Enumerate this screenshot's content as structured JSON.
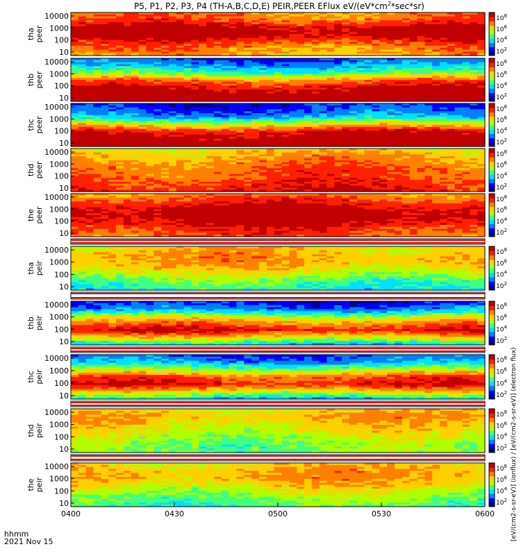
{
  "title_main": "P5, P1, P2, P3, P4 (TH-A,B,C,D,E) PEIR,PEER EFlux eV/(eV*cm",
  "title_sup": "2",
  "title_tail": "*sec*sr)",
  "colors": {
    "scale": [
      "#000088",
      "#0000ff",
      "#0080ff",
      "#00e0ff",
      "#40ff80",
      "#b0ff00",
      "#ffd000",
      "#ff8000",
      "#ff2000",
      "#c00000"
    ]
  },
  "bottom": {
    "hhmm_label": "hhmm",
    "date_label": "2021 Nov 15"
  },
  "colorbar_label": "[eV/(cm2-s-sr-eV)] (ionflux) / [eV/(cm2-s-sr-eV)] (electron flux)",
  "chart_data": [
    {
      "type": "heatmap",
      "ylabel": [
        "tha",
        "peer"
      ],
      "yticks": [
        "10000",
        "1000",
        "100",
        "10"
      ],
      "cbar_exps": [
        "8",
        "6",
        "4",
        "2"
      ],
      "profile": [
        7,
        7.5,
        9,
        9.5,
        8,
        7,
        6.5
      ]
    },
    {
      "type": "heatmap",
      "ylabel": [
        "thb",
        "peer"
      ],
      "yticks": [
        "10000",
        "1000",
        "100",
        "10"
      ],
      "cbar_exps": [
        "8",
        "6",
        "4",
        "2"
      ],
      "profile": [
        1.5,
        2.5,
        4,
        7,
        8.5,
        9.5,
        10
      ]
    },
    {
      "type": "heatmap",
      "ylabel": [
        "thc",
        "peer"
      ],
      "yticks": [
        "10000",
        "1000",
        "100",
        "10"
      ],
      "cbar_exps": [
        "8",
        "6",
        "4",
        "2"
      ],
      "profile": [
        1,
        1.5,
        3,
        6,
        8.5,
        9.5,
        10
      ]
    },
    {
      "type": "heatmap",
      "ylabel": [
        "thd",
        "peer"
      ],
      "yticks": [
        "10000",
        "1000",
        "100",
        "10"
      ],
      "cbar_exps": [
        "8",
        "6",
        "4",
        "2"
      ],
      "profile": [
        6,
        6.5,
        7,
        7.5,
        7.5,
        8,
        8.5
      ]
    },
    {
      "type": "heatmap",
      "ylabel": [
        "the",
        "peer"
      ],
      "yticks": [
        "10000",
        "1000",
        "100",
        "10"
      ],
      "cbar_exps": [
        "8",
        "6",
        "4",
        "2"
      ],
      "profile": [
        7,
        8,
        9,
        9.5,
        9,
        8,
        7.5
      ]
    },
    {
      "type": "heatmap",
      "ylabel": [
        "tha",
        "peir"
      ],
      "yticks": [
        "10000",
        "1000",
        "100",
        "10"
      ],
      "cbar_exps": [
        "8",
        "6",
        "4",
        "2"
      ],
      "profile": [
        6,
        6.5,
        6.5,
        6,
        5,
        4,
        3.5
      ]
    },
    {
      "type": "heatmap",
      "ylabel": [
        "thb",
        "peir"
      ],
      "yticks": [
        "10000",
        "1000",
        "100",
        "10"
      ],
      "cbar_exps": [
        "8",
        "6",
        "4",
        "2"
      ],
      "profile": [
        1,
        2,
        5,
        7,
        8.5,
        6,
        3
      ]
    },
    {
      "type": "heatmap",
      "ylabel": [
        "thc",
        "peir"
      ],
      "yticks": [
        "10000",
        "1000",
        "100",
        "10"
      ],
      "cbar_exps": [
        "8",
        "6",
        "4",
        "2"
      ],
      "profile": [
        1.5,
        2.5,
        5,
        7.5,
        8.5,
        6,
        3
      ]
    },
    {
      "type": "heatmap",
      "ylabel": [
        "thd",
        "peir"
      ],
      "yticks": [
        "10000",
        "1000",
        "100",
        "10"
      ],
      "cbar_exps": [
        "8",
        "6",
        "4",
        "2"
      ],
      "profile": [
        6,
        6.5,
        6,
        5.5,
        5,
        4.5,
        4.5
      ]
    },
    {
      "type": "heatmap",
      "ylabel": [
        "the",
        "peir"
      ],
      "yticks": [
        "10000",
        "1000",
        "100",
        "10"
      ],
      "cbar_exps": [
        "8",
        "6",
        "4",
        "2"
      ],
      "profile": [
        6,
        6.5,
        6.5,
        6,
        5,
        4.5,
        4
      ]
    }
  ],
  "x_axis": {
    "ticks": [
      "0400",
      "0430",
      "0500",
      "0530",
      "0600"
    ]
  }
}
